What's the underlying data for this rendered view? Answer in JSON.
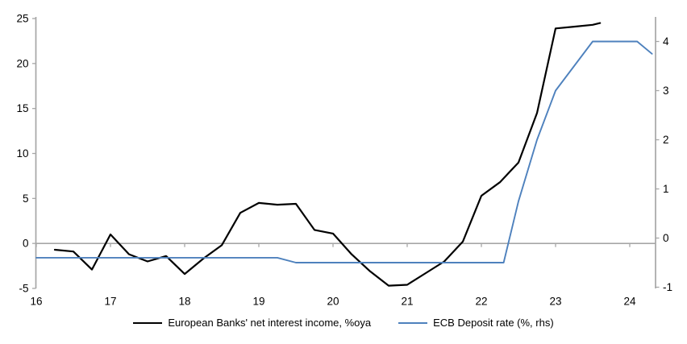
{
  "chart_data": {
    "type": "line",
    "title": "",
    "x_axis": {
      "tick_values": [
        16,
        17,
        18,
        19,
        20,
        21,
        22,
        23,
        24
      ],
      "tick_labels": [
        "16",
        "17",
        "18",
        "19",
        "20",
        "21",
        "22",
        "23",
        "24"
      ],
      "min": 16,
      "max": 24.35
    },
    "left_axis": {
      "label": "",
      "tick_values": [
        25,
        20,
        15,
        10,
        5,
        0,
        -5
      ],
      "tick_labels": [
        "25",
        "20",
        "15",
        "10",
        "5",
        "0",
        "-5"
      ],
      "min": -5,
      "max": 25
    },
    "right_axis": {
      "label": "",
      "tick_values": [
        4,
        3,
        2,
        1,
        0,
        -1
      ],
      "tick_labels": [
        "4",
        "3",
        "2",
        "1",
        "0",
        "-1"
      ],
      "min": -1,
      "max": 4.5
    },
    "grid": "zero-line-only",
    "legend_position": "bottom-center",
    "series": [
      {
        "name": "European Banks' net interest income, %oya",
        "axis": "left",
        "color": "#000000",
        "points": [
          [
            16.25,
            -0.7
          ],
          [
            16.5,
            -0.9
          ],
          [
            16.75,
            -2.9
          ],
          [
            17.0,
            1.0
          ],
          [
            17.25,
            -1.2
          ],
          [
            17.5,
            -2.0
          ],
          [
            17.75,
            -1.4
          ],
          [
            18.0,
            -3.4
          ],
          [
            18.25,
            -1.7
          ],
          [
            18.5,
            -0.2
          ],
          [
            18.75,
            3.4
          ],
          [
            19.0,
            4.5
          ],
          [
            19.25,
            4.3
          ],
          [
            19.5,
            4.4
          ],
          [
            19.75,
            1.5
          ],
          [
            20.0,
            1.1
          ],
          [
            20.25,
            -1.2
          ],
          [
            20.5,
            -3.1
          ],
          [
            20.75,
            -4.7
          ],
          [
            21.0,
            -4.6
          ],
          [
            21.25,
            -3.3
          ],
          [
            21.5,
            -2.0
          ],
          [
            21.75,
            0.2
          ],
          [
            22.0,
            5.3
          ],
          [
            22.25,
            6.8
          ],
          [
            22.5,
            9.0
          ],
          [
            22.75,
            14.5
          ],
          [
            23.0,
            23.9
          ],
          [
            23.25,
            24.1
          ],
          [
            23.5,
            24.3
          ],
          [
            23.6,
            24.5
          ]
        ]
      },
      {
        "name": "ECB Deposit rate (%, rhs)",
        "axis": "right",
        "color": "#4e81bd",
        "points": [
          [
            16.0,
            -0.4
          ],
          [
            19.25,
            -0.4
          ],
          [
            19.5,
            -0.5
          ],
          [
            22.3,
            -0.5
          ],
          [
            22.5,
            0.75
          ],
          [
            22.75,
            2.0
          ],
          [
            23.0,
            3.0
          ],
          [
            23.25,
            3.5
          ],
          [
            23.5,
            4.0
          ],
          [
            24.1,
            4.0
          ],
          [
            24.3,
            3.75
          ]
        ]
      }
    ]
  },
  "colors": {
    "axis": "#a6a6a6",
    "zero_line": "#a6a6a6",
    "text": "#000000",
    "nii_line": "#000000",
    "deposit_rate_line": "#4e81bd"
  }
}
